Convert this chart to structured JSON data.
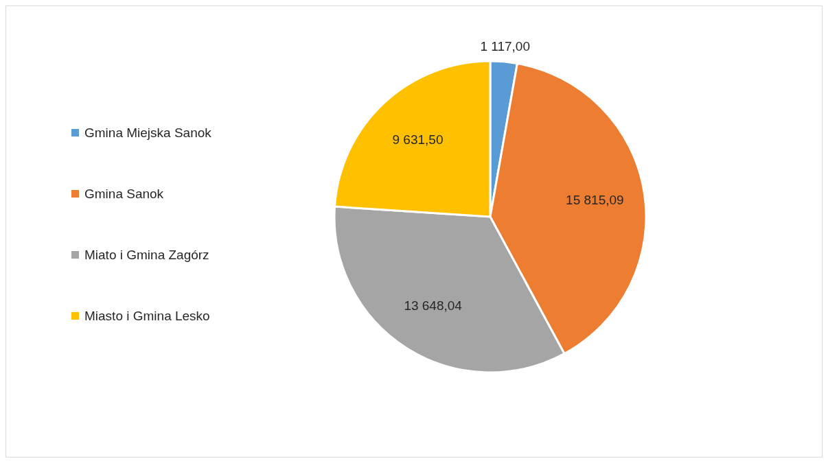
{
  "chart_data": {
    "type": "pie",
    "categories": [
      "Gmina Miejska Sanok",
      "Gmina Sanok",
      "Miato i Gmina Zagórz",
      "Miasto i Gmina Lesko"
    ],
    "values": [
      1117.0,
      15815.09,
      13648.04,
      9631.5
    ],
    "colors": [
      "#5b9bd5",
      "#ed7d31",
      "#a5a5a5",
      "#ffc000"
    ],
    "value_labels": [
      "1 117,00",
      "15 815,09",
      "13 648,04",
      "9 631,50"
    ],
    "legend": "left"
  }
}
